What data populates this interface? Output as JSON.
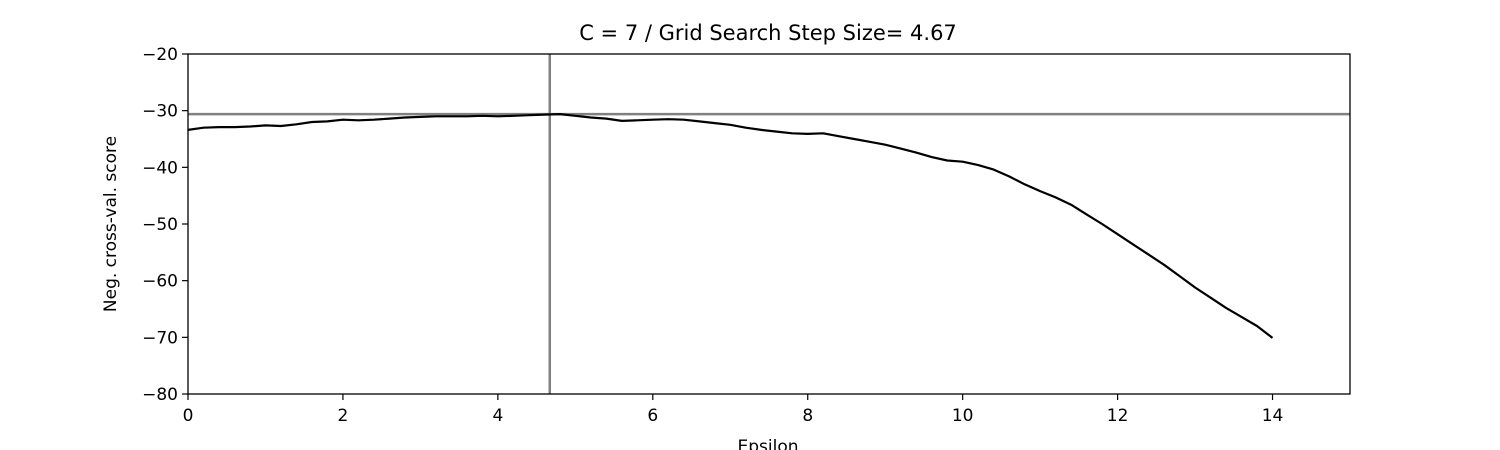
{
  "chart_data": {
    "type": "line",
    "title": "C = 7 / Grid Search Step Size= 4.67",
    "xlabel": "Epsilon",
    "ylabel": "Neg. cross-val. score",
    "xlim": [
      0,
      15
    ],
    "ylim": [
      -80,
      -20
    ],
    "xticks": [
      0,
      2,
      4,
      6,
      8,
      10,
      12,
      14
    ],
    "yticks": [
      -20,
      -30,
      -40,
      -50,
      -60,
      -70,
      -80
    ],
    "grid": false,
    "legend": "none",
    "series_color": "#000000",
    "reference_color": "#808080",
    "reference_lines": {
      "best_x": 4.67,
      "best_y": -30.6
    },
    "series": [
      {
        "x": [
          0,
          0.2,
          0.4,
          0.6,
          0.8,
          1.0,
          1.2,
          1.4,
          1.6,
          1.8,
          2.0,
          2.2,
          2.4,
          2.6,
          2.8,
          3.0,
          3.2,
          3.4,
          3.6,
          3.8,
          4.0,
          4.2,
          4.4,
          4.6,
          4.8,
          5.0,
          5.2,
          5.4,
          5.6,
          5.8,
          6.0,
          6.2,
          6.4,
          6.6,
          6.8,
          7.0,
          7.2,
          7.4,
          7.6,
          7.8,
          8.0,
          8.2,
          8.4,
          8.6,
          8.8,
          9.0,
          9.2,
          9.4,
          9.6,
          9.8,
          10.0,
          10.2,
          10.4,
          10.6,
          10.8,
          11.0,
          11.2,
          11.4,
          11.6,
          11.8,
          12.0,
          12.2,
          12.4,
          12.6,
          12.8,
          13.0,
          13.2,
          13.4,
          13.6,
          13.8,
          14.0
        ],
        "y": [
          -33.4,
          -33.0,
          -32.9,
          -32.9,
          -32.8,
          -32.6,
          -32.7,
          -32.4,
          -32.0,
          -31.9,
          -31.6,
          -31.7,
          -31.6,
          -31.4,
          -31.2,
          -31.1,
          -31.0,
          -31.0,
          -31.0,
          -30.9,
          -31.0,
          -30.9,
          -30.8,
          -30.7,
          -30.6,
          -30.9,
          -31.2,
          -31.4,
          -31.8,
          -31.7,
          -31.6,
          -31.5,
          -31.6,
          -31.9,
          -32.2,
          -32.5,
          -33.0,
          -33.4,
          -33.7,
          -34.0,
          -34.1,
          -34.0,
          -34.5,
          -35.0,
          -35.5,
          -36.0,
          -36.7,
          -37.4,
          -38.2,
          -38.8,
          -39.0,
          -39.6,
          -40.4,
          -41.6,
          -43.0,
          -44.2,
          -45.3,
          -46.6,
          -48.3,
          -50.0,
          -51.8,
          -53.6,
          -55.4,
          -57.2,
          -59.2,
          -61.2,
          -63.0,
          -64.8,
          -66.4,
          -68.0,
          -70.1
        ]
      }
    ]
  }
}
